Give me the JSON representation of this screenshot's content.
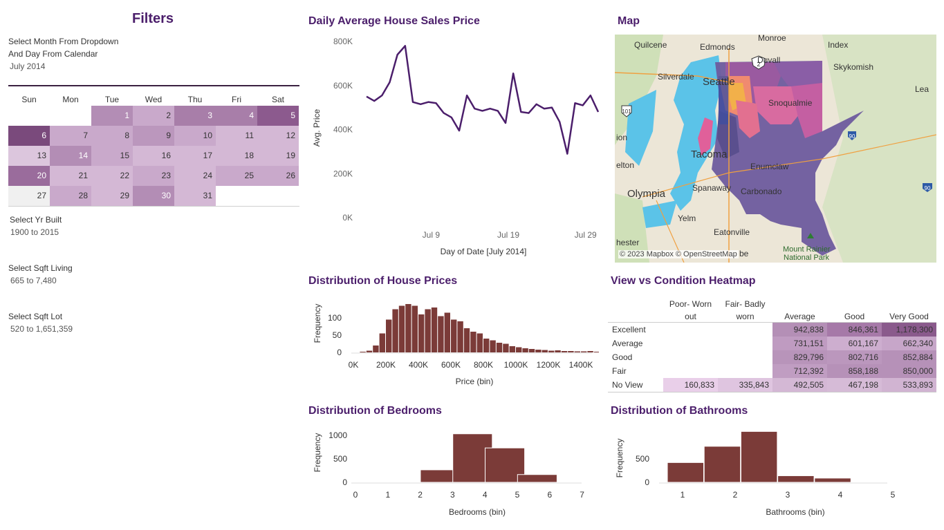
{
  "filters": {
    "title": "Filters",
    "month_label_line1": "Select Month From Dropdown",
    "month_label_line2": "And Day From Calendar",
    "month_value": "July 2014",
    "yr_built_label": "Select Yr Built",
    "yr_built_value": "1900 to 2015",
    "sqft_living_label": "Select Sqft Living",
    "sqft_living_value": "665 to 7,480",
    "sqft_lot_label": "Select Sqft Lot",
    "sqft_lot_value": "520 to 1,651,359"
  },
  "calendar": {
    "days_of_week": [
      "Sun",
      "Mon",
      "Tue",
      "Wed",
      "Thu",
      "Fri",
      "Sat"
    ],
    "first_weekday_index": 2,
    "days": [
      {
        "day": "1",
        "color": "#b38db5",
        "text": "#ffffff"
      },
      {
        "day": "2",
        "color": "#c9a9cb",
        "text": "#333333"
      },
      {
        "day": "3",
        "color": "#a87ea9",
        "text": "#ffffff"
      },
      {
        "day": "4",
        "color": "#a87ea9",
        "text": "#ffffff"
      },
      {
        "day": "5",
        "color": "#8c5a8e",
        "text": "#ffffff"
      },
      {
        "day": "6",
        "color": "#7a4a7c",
        "text": "#ffffff"
      },
      {
        "day": "7",
        "color": "#c9a9cb",
        "text": "#333333"
      },
      {
        "day": "8",
        "color": "#c9a9cb",
        "text": "#333333"
      },
      {
        "day": "9",
        "color": "#bb97bd",
        "text": "#333333"
      },
      {
        "day": "10",
        "color": "#c9a9cb",
        "text": "#333333"
      },
      {
        "day": "11",
        "color": "#d4b8d5",
        "text": "#333333"
      },
      {
        "day": "12",
        "color": "#d4b8d5",
        "text": "#333333"
      },
      {
        "day": "13",
        "color": "#dcc6dd",
        "text": "#333333"
      },
      {
        "day": "14",
        "color": "#b38db5",
        "text": "#ffffff"
      },
      {
        "day": "15",
        "color": "#c9a9cb",
        "text": "#333333"
      },
      {
        "day": "16",
        "color": "#d4b8d5",
        "text": "#333333"
      },
      {
        "day": "17",
        "color": "#d4b8d5",
        "text": "#333333"
      },
      {
        "day": "18",
        "color": "#d4b8d5",
        "text": "#333333"
      },
      {
        "day": "19",
        "color": "#d4b8d5",
        "text": "#333333"
      },
      {
        "day": "20",
        "color": "#9a6c9c",
        "text": "#ffffff"
      },
      {
        "day": "21",
        "color": "#d4b8d5",
        "text": "#333333"
      },
      {
        "day": "22",
        "color": "#d4b8d5",
        "text": "#333333"
      },
      {
        "day": "23",
        "color": "#c9a9cb",
        "text": "#333333"
      },
      {
        "day": "24",
        "color": "#d4b8d5",
        "text": "#333333"
      },
      {
        "day": "25",
        "color": "#c9a9cb",
        "text": "#333333"
      },
      {
        "day": "26",
        "color": "#c9a9cb",
        "text": "#333333"
      },
      {
        "day": "27",
        "color": "#f0f0f0",
        "text": "#333333"
      },
      {
        "day": "28",
        "color": "#c9a9cb",
        "text": "#333333"
      },
      {
        "day": "29",
        "color": "#d4b8d5",
        "text": "#333333"
      },
      {
        "day": "30",
        "color": "#b38db5",
        "text": "#ffffff"
      },
      {
        "day": "31",
        "color": "#d4b8d5",
        "text": "#333333"
      }
    ]
  },
  "line_chart": {
    "title": "Daily Average House Sales Price",
    "ylabel": "Avg. Price",
    "xlabel": "Day of Date [July 2014]",
    "y_ticks": [
      "0K",
      "200K",
      "400K",
      "600K",
      "800K"
    ],
    "x_ticks": [
      "Jul 9",
      "Jul 19",
      "Jul 29"
    ],
    "color": "#4b1e6b"
  },
  "map": {
    "title": "Map",
    "copyright": "© 2023 Mapbox © OpenStreetMap",
    "places": [
      "Quilcene",
      "Edmonds",
      "Monroe",
      "Index",
      "Duvall",
      "Silverdale",
      "Skykomish",
      "Seattle",
      "Snoqualmie",
      "ion",
      "Tacoma",
      "Enumclaw",
      "elton",
      "Spanaway",
      "Carbonado",
      "Olympia",
      "Yelm",
      "Eatonville",
      "hester",
      "be",
      "Mount Rainier",
      "National Park",
      "Lea"
    ],
    "road_shields": [
      "101",
      "2",
      "90",
      "90"
    ]
  },
  "price_hist": {
    "title": "Distribution of House Prices",
    "ylabel": "Frequency",
    "xlabel": "Price (bin)",
    "y_ticks": [
      "0",
      "50",
      "100"
    ],
    "x_ticks": [
      "0K",
      "200K",
      "400K",
      "600K",
      "800K",
      "1000K",
      "1200K",
      "1400K"
    ],
    "color": "#7b3b38"
  },
  "heatmap": {
    "title": "View vs Condition Heatmap",
    "columns": [
      {
        "line1": "Poor- Worn",
        "line2": "out"
      },
      {
        "line1": "Fair- Badly",
        "line2": "worn"
      },
      {
        "line1": "",
        "line2": "Average"
      },
      {
        "line1": "",
        "line2": "Good"
      },
      {
        "line1": "",
        "line2": "Very Good"
      }
    ],
    "rows": [
      {
        "label": "Excellent",
        "cells": [
          {
            "v": "",
            "c": "#ffffff"
          },
          {
            "v": "",
            "c": "#ffffff"
          },
          {
            "v": "942,838",
            "c": "#b48fb6"
          },
          {
            "v": "846,361",
            "c": "#a679a8"
          },
          {
            "v": "1,178,300",
            "c": "#8a5a8c"
          }
        ]
      },
      {
        "label": "Average",
        "cells": [
          {
            "v": "",
            "c": "#ffffff"
          },
          {
            "v": "",
            "c": "#ffffff"
          },
          {
            "v": "731,151",
            "c": "#bf9bc1"
          },
          {
            "v": "601,167",
            "c": "#cdaecf"
          },
          {
            "v": "662,340",
            "c": "#c7a6c9"
          }
        ]
      },
      {
        "label": "Good",
        "cells": [
          {
            "v": "",
            "c": "#ffffff"
          },
          {
            "v": "",
            "c": "#ffffff"
          },
          {
            "v": "829,796",
            "c": "#b894ba"
          },
          {
            "v": "802,716",
            "c": "#bb97bd"
          },
          {
            "v": "852,884",
            "c": "#b691b8"
          }
        ]
      },
      {
        "label": "Fair",
        "cells": [
          {
            "v": "",
            "c": "#ffffff"
          },
          {
            "v": "",
            "c": "#ffffff"
          },
          {
            "v": "712,392",
            "c": "#c09dc2"
          },
          {
            "v": "858,188",
            "c": "#b691b8"
          },
          {
            "v": "850,000",
            "c": "#b691b8"
          }
        ]
      },
      {
        "label": "No View",
        "cells": [
          {
            "v": "160,833",
            "c": "#e9cfe9"
          },
          {
            "v": "335,843",
            "c": "#dfc5e0"
          },
          {
            "v": "492,505",
            "c": "#d4b8d5"
          },
          {
            "v": "467,198",
            "c": "#d6bbd7"
          },
          {
            "v": "533,893",
            "c": "#d1b4d2"
          }
        ]
      }
    ]
  },
  "bedrooms": {
    "title": "Distribution of Bedrooms",
    "ylabel": "Frequency",
    "xlabel": "Bedrooms (bin)",
    "y_ticks": [
      "0",
      "500",
      "1000"
    ],
    "x_ticks": [
      "0",
      "1",
      "2",
      "3",
      "4",
      "5",
      "6",
      "7"
    ],
    "color": "#7b3b38"
  },
  "bathrooms": {
    "title": "Distribution of Bathrooms",
    "ylabel": "Frequency",
    "xlabel": "Bathrooms (bin)",
    "y_ticks": [
      "0",
      "500"
    ],
    "x_ticks": [
      "1",
      "2",
      "3",
      "4",
      "5"
    ],
    "color": "#7b3b38"
  },
  "chart_data": [
    {
      "type": "line",
      "title": "Daily Average House Sales Price",
      "xlabel": "Day of Date [July 2014]",
      "ylabel": "Avg. Price",
      "x": [
        1,
        2,
        3,
        4,
        5,
        6,
        7,
        8,
        9,
        10,
        11,
        12,
        13,
        14,
        15,
        16,
        17,
        18,
        19,
        20,
        21,
        22,
        23,
        24,
        25,
        26,
        27,
        28,
        29,
        30,
        31
      ],
      "series": [
        {
          "values": [
            550000,
            530000,
            555000,
            615000,
            740000,
            780000,
            525000,
            515000,
            525000,
            520000,
            475000,
            455000,
            395000,
            555000,
            495000,
            485000,
            495000,
            485000,
            430000,
            655000,
            480000,
            475000,
            515000,
            495000,
            500000,
            435000,
            290000,
            520000,
            510000,
            555000,
            480000
          ]
        }
      ],
      "ylim": [
        0,
        800000
      ],
      "grid": false
    },
    {
      "type": "bar",
      "title": "Distribution of House Prices",
      "xlabel": "Price (bin)",
      "ylabel": "Frequency",
      "bin_width": 40000,
      "x": [
        0,
        40000,
        80000,
        120000,
        160000,
        200000,
        240000,
        280000,
        320000,
        360000,
        400000,
        440000,
        480000,
        520000,
        560000,
        600000,
        640000,
        680000,
        720000,
        760000,
        800000,
        840000,
        880000,
        920000,
        960000,
        1000000,
        1040000,
        1080000,
        1120000,
        1160000,
        1200000,
        1240000,
        1280000,
        1320000,
        1360000,
        1400000,
        1440000,
        1480000
      ],
      "values": [
        0,
        2,
        5,
        20,
        55,
        95,
        125,
        135,
        140,
        135,
        110,
        125,
        130,
        105,
        115,
        95,
        90,
        70,
        60,
        55,
        40,
        35,
        28,
        25,
        18,
        15,
        12,
        10,
        8,
        7,
        5,
        6,
        4,
        4,
        3,
        3,
        4,
        2
      ],
      "ylim": [
        0,
        150
      ]
    },
    {
      "type": "bar",
      "title": "Distribution of Bedrooms",
      "xlabel": "Bedrooms (bin)",
      "ylabel": "Frequency",
      "x": [
        1,
        2,
        3,
        4,
        5
      ],
      "values": [
        5,
        265,
        1030,
        730,
        165
      ],
      "ylim": [
        0,
        1100
      ]
    },
    {
      "type": "bar",
      "title": "Distribution of Bathrooms",
      "xlabel": "Bathrooms (bin)",
      "ylabel": "Frequency",
      "x": [
        1,
        1.7,
        2.4,
        3.1,
        3.8
      ],
      "values": [
        420,
        765,
        1080,
        140,
        90
      ],
      "ylim": [
        0,
        1100
      ]
    },
    {
      "type": "heatmap",
      "title": "View vs Condition Heatmap",
      "columns": [
        "Poor- Worn out",
        "Fair- Badly worn",
        "Average",
        "Good",
        "Very Good"
      ],
      "rows": [
        "Excellent",
        "Average",
        "Good",
        "Fair",
        "No View"
      ],
      "values": [
        [
          null,
          null,
          942838,
          846361,
          1178300
        ],
        [
          null,
          null,
          731151,
          601167,
          662340
        ],
        [
          null,
          null,
          829796,
          802716,
          852884
        ],
        [
          null,
          null,
          712392,
          858188,
          850000
        ],
        [
          160833,
          335843,
          492505,
          467198,
          533893
        ]
      ]
    }
  ]
}
